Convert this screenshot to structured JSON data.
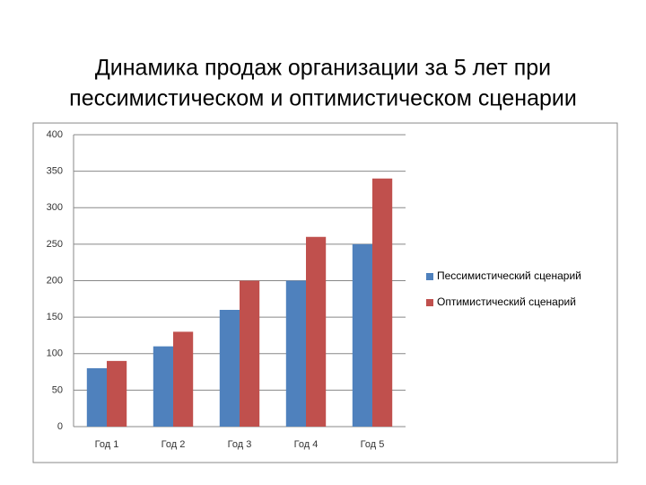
{
  "chart_data": {
    "type": "bar",
    "title": [
      "Динамика продаж организации за 5 лет при",
      "пессимистическом и оптимистическом сценарии"
    ],
    "categories": [
      "Год 1",
      "Год 2",
      "Год 3",
      "Год 4",
      "Год 5"
    ],
    "series": [
      {
        "name": "Пессимистический сценарий",
        "color": "#4f81bd",
        "values": [
          80,
          110,
          160,
          200,
          250
        ]
      },
      {
        "name": "Оптимистический сценарий",
        "color": "#c0504d",
        "values": [
          90,
          130,
          200,
          260,
          340
        ]
      }
    ],
    "ylim": [
      0,
      400
    ],
    "yticks": [
      0,
      50,
      100,
      150,
      200,
      250,
      300,
      350,
      400
    ],
    "grid": true,
    "legend": "right"
  }
}
